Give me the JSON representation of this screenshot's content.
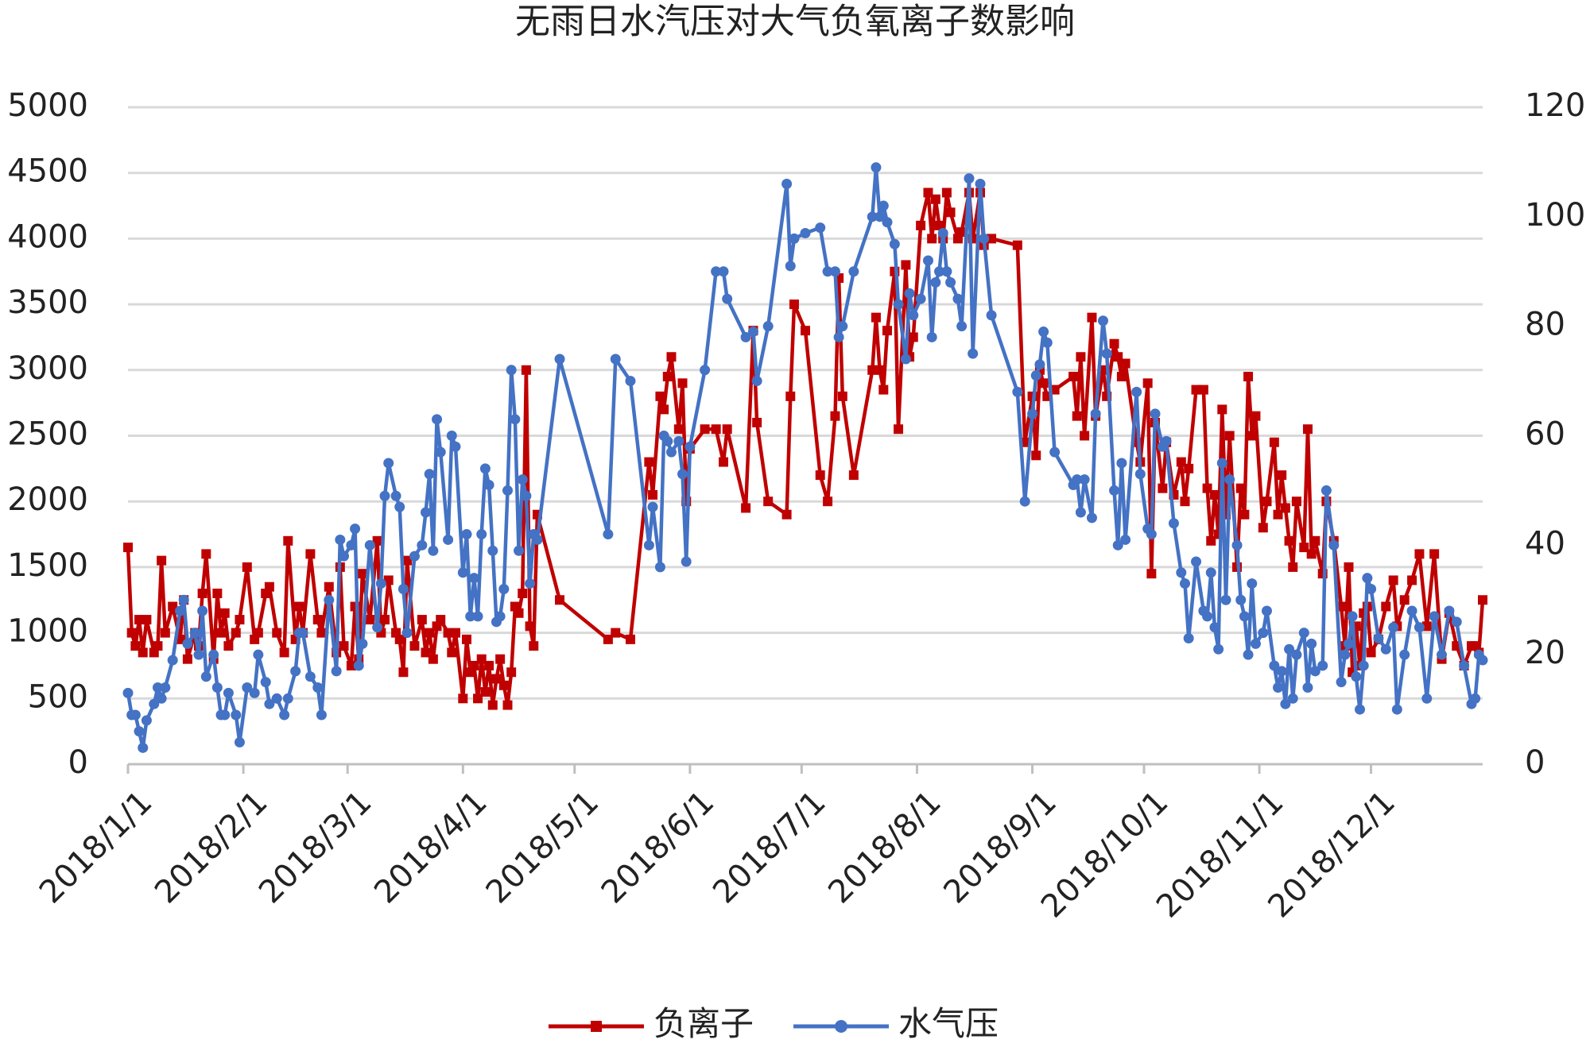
{
  "chart_data": {
    "type": "line",
    "title": "无雨日水汽压对大气负氧离子数影响",
    "x": [
      "2018/1/1",
      "2018/1/2",
      "2018/1/3",
      "2018/1/4",
      "2018/1/5",
      "2018/1/6",
      "2018/1/8",
      "2018/1/9",
      "2018/1/10",
      "2018/1/11",
      "2018/1/13",
      "2018/1/15",
      "2018/1/16",
      "2018/1/17",
      "2018/1/19",
      "2018/1/20",
      "2018/1/21",
      "2018/1/22",
      "2018/1/24",
      "2018/1/25",
      "2018/1/26",
      "2018/1/27",
      "2018/1/28",
      "2018/1/30",
      "2018/1/31",
      "2018/2/2",
      "2018/2/4",
      "2018/2/5",
      "2018/2/7",
      "2018/2/8",
      "2018/2/10",
      "2018/2/12",
      "2018/2/13",
      "2018/2/15",
      "2018/2/16",
      "2018/2/17",
      "2018/2/19",
      "2018/2/21",
      "2018/2/22",
      "2018/2/24",
      "2018/2/26",
      "2018/2/27",
      "2018/2/28",
      "2018/3/2",
      "2018/3/3",
      "2018/3/4",
      "2018/3/5",
      "2018/3/7",
      "2018/3/9",
      "2018/3/10",
      "2018/3/11",
      "2018/3/12",
      "2018/3/14",
      "2018/3/15",
      "2018/3/16",
      "2018/3/17",
      "2018/3/19",
      "2018/3/21",
      "2018/3/22",
      "2018/3/23",
      "2018/3/24",
      "2018/3/25",
      "2018/3/26",
      "2018/3/28",
      "2018/3/29",
      "2018/3/30",
      "2018/4/1",
      "2018/4/2",
      "2018/4/3",
      "2018/4/4",
      "2018/4/5",
      "2018/4/6",
      "2018/4/7",
      "2018/4/8",
      "2018/4/9",
      "2018/4/10",
      "2018/4/11",
      "2018/4/12",
      "2018/4/13",
      "2018/4/14",
      "2018/4/15",
      "2018/4/16",
      "2018/4/17",
      "2018/4/18",
      "2018/4/19",
      "2018/4/20",
      "2018/4/21",
      "2018/4/27",
      "2018/5/10",
      "2018/5/12",
      "2018/5/16",
      "2018/5/21",
      "2018/5/22",
      "2018/5/24",
      "2018/5/25",
      "2018/5/26",
      "2018/5/27",
      "2018/5/29",
      "2018/5/30",
      "2018/5/31",
      "2018/6/1",
      "2018/6/5",
      "2018/6/8",
      "2018/6/10",
      "2018/6/11",
      "2018/6/16",
      "2018/6/18",
      "2018/6/19",
      "2018/6/22",
      "2018/6/27",
      "2018/6/28",
      "2018/6/29",
      "2018/7/2",
      "2018/7/6",
      "2018/7/8",
      "2018/7/10",
      "2018/7/11",
      "2018/7/12",
      "2018/7/15",
      "2018/7/20",
      "2018/7/21",
      "2018/7/22",
      "2018/7/23",
      "2018/7/24",
      "2018/7/26",
      "2018/7/27",
      "2018/7/29",
      "2018/7/30",
      "2018/7/31",
      "2018/8/2",
      "2018/8/4",
      "2018/8/5",
      "2018/8/6",
      "2018/8/7",
      "2018/8/8",
      "2018/8/9",
      "2018/8/10",
      "2018/8/12",
      "2018/8/13",
      "2018/8/15",
      "2018/8/16",
      "2018/8/18",
      "2018/8/19",
      "2018/8/21",
      "2018/8/28",
      "2018/8/30",
      "2018/9/1",
      "2018/9/2",
      "2018/9/3",
      "2018/9/4",
      "2018/9/5",
      "2018/9/7",
      "2018/9/12",
      "2018/9/13",
      "2018/9/14",
      "2018/9/15",
      "2018/9/17",
      "2018/9/18",
      "2018/9/20",
      "2018/9/21",
      "2018/9/23",
      "2018/9/24",
      "2018/9/25",
      "2018/9/26",
      "2018/9/29",
      "2018/9/30",
      "2018/10/2",
      "2018/10/3",
      "2018/10/4",
      "2018/10/6",
      "2018/10/7",
      "2018/10/9",
      "2018/10/11",
      "2018/10/12",
      "2018/10/13",
      "2018/10/15",
      "2018/10/17",
      "2018/10/18",
      "2018/10/19",
      "2018/10/20",
      "2018/10/21",
      "2018/10/22",
      "2018/10/23",
      "2018/10/24",
      "2018/10/26",
      "2018/10/27",
      "2018/10/28",
      "2018/10/29",
      "2018/10/30",
      "2018/10/31",
      "2018/11/2",
      "2018/11/3",
      "2018/11/5",
      "2018/11/6",
      "2018/11/7",
      "2018/11/8",
      "2018/11/9",
      "2018/11/10",
      "2018/11/11",
      "2018/11/13",
      "2018/11/14",
      "2018/11/15",
      "2018/11/16",
      "2018/11/18",
      "2018/11/19",
      "2018/11/21",
      "2018/11/23",
      "2018/11/24",
      "2018/11/25",
      "2018/11/26",
      "2018/11/27",
      "2018/11/28",
      "2018/11/29",
      "2018/11/30",
      "2018/12/1",
      "2018/12/3",
      "2018/12/5",
      "2018/12/7",
      "2018/12/8",
      "2018/12/10",
      "2018/12/12",
      "2018/12/14",
      "2018/12/16",
      "2018/12/18",
      "2018/12/20",
      "2018/12/22",
      "2018/12/24",
      "2018/12/26",
      "2018/12/28",
      "2018/12/29",
      "2018/12/30",
      "2018/12/31"
    ],
    "series": [
      {
        "name": "负离子",
        "color": "#c00000",
        "marker": "square",
        "values": [
          1650,
          1000,
          900,
          1100,
          850,
          1100,
          850,
          900,
          1550,
          1000,
          1200,
          950,
          1250,
          800,
          1000,
          900,
          1300,
          1600,
          800,
          1300,
          1000,
          1150,
          900,
          1000,
          1100,
          1500,
          950,
          1000,
          1300,
          1350,
          1000,
          850,
          1700,
          950,
          1200,
          1000,
          1600,
          1100,
          1000,
          1350,
          850,
          1500,
          900,
          750,
          1200,
          800,
          1450,
          1100,
          1700,
          1000,
          1100,
          1400,
          1000,
          950,
          700,
          1550,
          900,
          1100,
          850,
          1000,
          800,
          1050,
          1100,
          1000,
          850,
          1000,
          500,
          950,
          700,
          750,
          500,
          800,
          550,
          750,
          450,
          650,
          800,
          600,
          450,
          700,
          1200,
          1150,
          1300,
          3000,
          1050,
          900,
          1900,
          1250,
          950,
          1000,
          950,
          2300,
          2050,
          2800,
          2700,
          2950,
          3100,
          2550,
          2900,
          2000,
          2400,
          2550,
          2550,
          2300,
          2550,
          1950,
          3300,
          2600,
          2000,
          1900,
          2800,
          3500,
          3300,
          2200,
          2000,
          2650,
          3700,
          2800,
          2200,
          3000,
          3400,
          3000,
          2850,
          3300,
          3750,
          2550,
          3800,
          3100,
          3250,
          4100,
          4350,
          4000,
          4300,
          4100,
          4000,
          4350,
          4200,
          4000,
          4050,
          4350,
          4000,
          4350,
          3950,
          4000,
          3950,
          2450,
          2800,
          2350,
          3000,
          2900,
          2800,
          2850,
          2950,
          2650,
          3100,
          2500,
          3400,
          2650,
          3000,
          2800,
          3200,
          3100,
          2950,
          3050,
          2450,
          2300,
          2900,
          1450,
          2600,
          2100,
          2450,
          2050,
          2300,
          2000,
          2250,
          2850,
          2850,
          2100,
          1700,
          2050,
          1750,
          2700,
          1900,
          2500,
          1500,
          2100,
          1900,
          2950,
          2500,
          2650,
          1800,
          2000,
          2450,
          1900,
          2200,
          1950,
          1700,
          1500,
          2000,
          1650,
          2550,
          1600,
          1700,
          1450,
          2000,
          1700,
          1200,
          900,
          1500,
          700,
          1050,
          750,
          1150,
          1200,
          850,
          950,
          1200,
          1400,
          1050,
          1250,
          1400,
          1600,
          1050,
          1600,
          800,
          1150,
          900,
          750,
          900,
          900,
          850,
          1250
        ]
      },
      {
        "name": "水气压",
        "color": "#4472c4",
        "marker": "circle",
        "axis": "y2",
        "values": [
          13,
          9,
          9,
          6,
          3,
          8,
          11,
          14,
          12,
          14,
          19,
          28,
          30,
          22,
          24,
          20,
          28,
          16,
          20,
          14,
          9,
          9,
          13,
          9,
          4,
          14,
          13,
          20,
          15,
          11,
          12,
          9,
          12,
          17,
          24,
          24,
          16,
          14,
          9,
          30,
          17,
          41,
          38,
          40,
          43,
          18,
          22,
          40,
          25,
          33,
          49,
          55,
          49,
          47,
          32,
          24,
          38,
          40,
          46,
          53,
          39,
          63,
          57,
          41,
          60,
          58,
          35,
          42,
          27,
          34,
          27,
          42,
          54,
          51,
          39,
          26,
          27,
          32,
          50,
          72,
          63,
          39,
          52,
          49,
          33,
          42,
          41,
          74,
          42,
          74,
          70,
          40,
          47,
          36,
          60,
          59,
          57,
          59,
          53,
          37,
          58,
          72,
          90,
          90,
          85,
          78,
          79,
          70,
          80,
          106,
          91,
          96,
          97,
          98,
          90,
          90,
          78,
          80,
          90,
          100,
          109,
          100,
          102,
          99,
          95,
          84,
          74,
          86,
          82,
          85,
          92,
          78,
          88,
          90,
          97,
          90,
          88,
          85,
          80,
          107,
          75,
          106,
          96,
          82,
          68,
          48,
          64,
          71,
          73,
          79,
          77,
          57,
          51,
          52,
          46,
          52,
          45,
          64,
          81,
          75,
          50,
          40,
          55,
          41,
          68,
          53,
          43,
          42,
          64,
          58,
          59,
          44,
          35,
          33,
          23,
          37,
          28,
          27,
          35,
          25,
          21,
          55,
          30,
          52,
          40,
          30,
          27,
          20,
          33,
          22,
          24,
          28,
          18,
          14,
          17,
          11,
          21,
          12,
          20,
          24,
          14,
          22,
          17,
          18,
          50,
          40,
          15,
          20,
          22,
          27,
          16,
          10,
          18,
          34,
          32,
          23,
          21,
          25,
          10,
          20,
          28,
          25,
          12,
          27,
          20,
          28,
          26,
          18,
          11,
          12,
          20,
          19
        ]
      }
    ],
    "xlim": [
      "2018/1/1",
      "2018/12/31"
    ],
    "xticks": [
      "2018/1/1",
      "2018/2/1",
      "2018/3/1",
      "2018/4/1",
      "2018/5/1",
      "2018/6/1",
      "2018/7/1",
      "2018/8/1",
      "2018/9/1",
      "2018/10/1",
      "2018/11/1",
      "2018/12/1"
    ],
    "ylim": [
      0,
      5000
    ],
    "yticks": [
      0,
      500,
      1000,
      1500,
      2000,
      2500,
      3000,
      3500,
      4000,
      4500,
      5000
    ],
    "y2lim": [
      0,
      120
    ],
    "y2ticks": [
      0,
      20,
      40,
      60,
      80,
      100,
      120
    ],
    "grid": true,
    "legend": "bottom"
  }
}
